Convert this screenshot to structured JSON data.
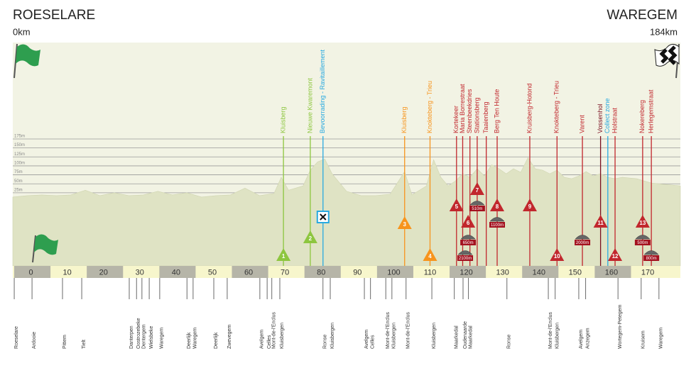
{
  "chart_data": {
    "type": "area",
    "start": {
      "name": "ROESELARE",
      "distance": "0km"
    },
    "finish": {
      "name": "WAREGEM",
      "distance": "184km"
    },
    "xlim": [
      0,
      184
    ],
    "xticks": [
      0,
      10,
      20,
      30,
      40,
      50,
      60,
      70,
      80,
      90,
      100,
      110,
      120,
      130,
      140,
      150,
      160,
      170
    ],
    "ylim": [
      0,
      175
    ],
    "yticks": [
      {
        "value": 25,
        "label": "25m"
      },
      {
        "value": 50,
        "label": "50m"
      },
      {
        "value": 75,
        "label": "75m"
      },
      {
        "value": 100,
        "label": "100m"
      },
      {
        "value": 125,
        "label": "125m"
      },
      {
        "value": 150,
        "label": "150m"
      },
      {
        "value": 175,
        "label": "175m"
      }
    ],
    "grid": true,
    "color": "#dfe3c4",
    "x": [
      0,
      4,
      8,
      12,
      16,
      20,
      24,
      28,
      32,
      36,
      40,
      44,
      48,
      52,
      56,
      60,
      64,
      68,
      72,
      74,
      76,
      80,
      82,
      84,
      86,
      88,
      92,
      96,
      100,
      104,
      108,
      110,
      114,
      116,
      118,
      120,
      122,
      124,
      126,
      128,
      130,
      132,
      134,
      136,
      138,
      140,
      142,
      144,
      146,
      148,
      150,
      152,
      154,
      156,
      158,
      160,
      162,
      164,
      166,
      168,
      172,
      176,
      180,
      184
    ],
    "values": [
      13,
      17,
      19,
      17,
      19,
      32,
      17,
      25,
      17,
      19,
      29,
      19,
      25,
      13,
      17,
      19,
      38,
      17,
      23,
      68,
      32,
      44,
      88,
      111,
      119,
      78,
      29,
      17,
      17,
      21,
      84,
      19,
      44,
      117,
      68,
      44,
      58,
      78,
      68,
      92,
      72,
      103,
      92,
      78,
      92,
      82,
      123,
      92,
      88,
      78,
      88,
      68,
      64,
      72,
      84,
      72,
      78,
      68,
      64,
      68,
      64,
      52,
      48,
      44
    ],
    "climbs": [
      {
        "label": "Kluisberg",
        "x": 74.6,
        "color": "#8dc63f"
      },
      {
        "label": "Nieuwe Kwaremont",
        "x": 82,
        "color": "#8dc63f"
      },
      {
        "label": "Bevoorrading - Ravitaillement",
        "x": 85.5,
        "color": "#29a9e0"
      },
      {
        "label": "Kluisberg",
        "x": 108,
        "color": "#f7941d"
      },
      {
        "label": "Knokteberg - Trieu",
        "x": 115,
        "color": "#f7941d"
      },
      {
        "label": "Kortekeer",
        "x": 122.3,
        "color": "#c1272d"
      },
      {
        "label": "Maria Borrestraat",
        "x": 124,
        "color": "#c1272d"
      },
      {
        "label": "Steenbeekdries",
        "x": 126,
        "color": "#c1272d"
      },
      {
        "label": "Stationsberg",
        "x": 128,
        "color": "#c1272d"
      },
      {
        "label": "Taaienberg",
        "x": 130.5,
        "color": "#c1272d"
      },
      {
        "label": "Berg Ten Houte",
        "x": 133.5,
        "color": "#c1272d"
      },
      {
        "label": "Kruisberg-Hotond",
        "x": 142.5,
        "color": "#c1272d"
      },
      {
        "label": "Knokteberg - Trieu",
        "x": 150,
        "color": "#c1272d"
      },
      {
        "label": "Varent",
        "x": 157,
        "color": "#c1272d"
      },
      {
        "label": "Vossenhol",
        "x": 162,
        "color": "#7a1020"
      },
      {
        "label": "Collect zone",
        "x": 164,
        "color": "#29a9e0"
      },
      {
        "label": "Holstraat",
        "x": 166,
        "color": "#c1272d"
      },
      {
        "label": "Nokereberg",
        "x": 173.6,
        "color": "#c1272d"
      },
      {
        "label": "Herlegemstraat",
        "x": 176,
        "color": "#c1272d"
      }
    ],
    "climb_markers": [
      {
        "label": "1",
        "x": 74.6,
        "color": "#8dc63f"
      },
      {
        "label": "2",
        "x": 82,
        "color": "#8dc63f"
      },
      {
        "label": "3",
        "x": 108,
        "color": "#f7941d"
      },
      {
        "label": "4",
        "x": 115,
        "color": "#f7941d"
      },
      {
        "label": "5",
        "x": 122.3,
        "color": "#c1272d"
      },
      {
        "label": "6",
        "x": 125.5,
        "color": "#c1272d"
      },
      {
        "label": "7",
        "x": 128,
        "color": "#c1272d"
      },
      {
        "label": "8",
        "x": 133.5,
        "color": "#c1272d"
      },
      {
        "label": "9",
        "x": 142.5,
        "color": "#c1272d"
      },
      {
        "label": "10",
        "x": 150,
        "color": "#c1272d"
      },
      {
        "label": "11",
        "x": 162,
        "color": "#c1272d"
      },
      {
        "label": "12",
        "x": 166,
        "color": "#c1272d"
      },
      {
        "label": "13",
        "x": 173.6,
        "color": "#c1272d"
      }
    ],
    "cobbles": [
      {
        "label": "2100m",
        "x": 124.7
      },
      {
        "label": "650m",
        "x": 125.5
      },
      {
        "label": "510m",
        "x": 128
      },
      {
        "label": "1100m",
        "x": 133.5
      },
      {
        "label": "2000m",
        "x": 157
      },
      {
        "label": "500m",
        "x": 173.6
      },
      {
        "label": "800m",
        "x": 176
      }
    ],
    "locations": [
      {
        "label": "Roeselare",
        "x": 0.4
      },
      {
        "label": "Ardooie",
        "x": 5.3
      },
      {
        "label": "Pittem",
        "x": 13.7
      },
      {
        "label": "Tielt",
        "x": 19
      },
      {
        "label": "Danterpen",
        "x": 32.1
      },
      {
        "label": "Oostrozebeke",
        "x": 34.1
      },
      {
        "label": "Dentergem",
        "x": 35.6
      },
      {
        "label": "Wielsbeke",
        "x": 37.6
      },
      {
        "label": "Waregem",
        "x": 40.5
      },
      {
        "label": "Deerlijk",
        "x": 48
      },
      {
        "label": "Waregem",
        "x": 49.7
      },
      {
        "label": "Deerlijk",
        "x": 55.4
      },
      {
        "label": "Zwevegem",
        "x": 59.1
      },
      {
        "label": "Avelgem",
        "x": 68.1
      },
      {
        "label": "Celles",
        "x": 70.1
      },
      {
        "label": "Mont-de-l'Enclus",
        "x": 71.4
      },
      {
        "label": "Kluisbergen",
        "x": 73.6
      },
      {
        "label": "Ronse",
        "x": 85.5
      },
      {
        "label": "Kluisbergen",
        "x": 87.5
      },
      {
        "label": "Avelgem",
        "x": 96.9
      },
      {
        "label": "Celles",
        "x": 98.6
      },
      {
        "label": "Mont-de-l'Enclus",
        "x": 102.8
      },
      {
        "label": "Kluisbergen",
        "x": 104.5
      },
      {
        "label": "Mont-de-l'Enclus",
        "x": 108.4
      },
      {
        "label": "Kluisbergen",
        "x": 115.5
      },
      {
        "label": "Maarkedal",
        "x": 121.7
      },
      {
        "label": "Oudenaarde",
        "x": 124.1
      },
      {
        "label": "Maarkedal",
        "x": 125.6
      },
      {
        "label": "Ronse",
        "x": 136.2
      },
      {
        "label": "Mont-de-l'Enclus",
        "x": 147.6
      },
      {
        "label": "Kluisbergen",
        "x": 149.5
      },
      {
        "label": "Avelgem",
        "x": 156
      },
      {
        "label": "Anzegem",
        "x": 157.9
      },
      {
        "label": "Wortegem-Petegem",
        "x": 166.8
      },
      {
        "label": "Kruisem",
        "x": 173.2
      },
      {
        "label": "Waregem",
        "x": 178.1
      }
    ]
  }
}
